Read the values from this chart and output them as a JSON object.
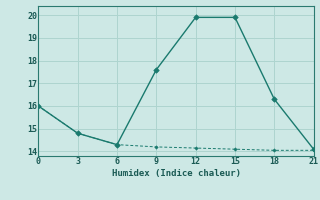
{
  "xlabel": "Humidex (Indice chaleur)",
  "line1_x": [
    0,
    3,
    6,
    9,
    12,
    15,
    18,
    21
  ],
  "line1_y": [
    16.0,
    14.8,
    14.3,
    17.6,
    19.9,
    19.9,
    16.3,
    14.1
  ],
  "line2_x": [
    0,
    3,
    6,
    9,
    12,
    15,
    18,
    21
  ],
  "line2_y": [
    16.0,
    14.8,
    14.3,
    14.2,
    14.15,
    14.1,
    14.05,
    14.05
  ],
  "line_color": "#1a7a6e",
  "bg_color": "#cde8e5",
  "grid_color": "#aed4cf",
  "xlim": [
    0,
    21
  ],
  "ylim": [
    13.8,
    20.4
  ],
  "xticks": [
    0,
    3,
    6,
    9,
    12,
    15,
    18,
    21
  ],
  "yticks": [
    14,
    15,
    16,
    17,
    18,
    19,
    20
  ],
  "xlabel_color": "#1a5a54",
  "tick_color": "#1a5a54"
}
